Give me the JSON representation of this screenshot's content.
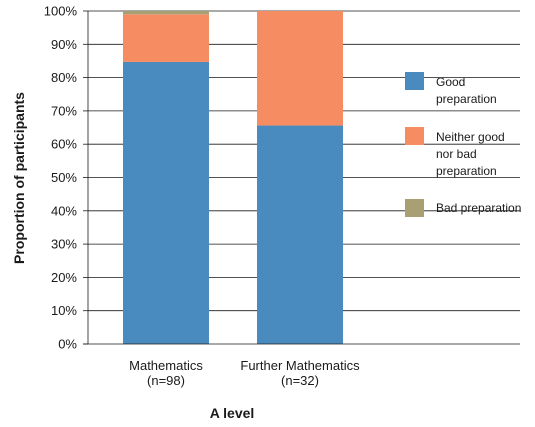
{
  "chart_data": {
    "type": "bar",
    "stacked": true,
    "categories": [
      [
        "Mathematics",
        "(n=98)"
      ],
      [
        "Further Mathematics",
        "(n=32)"
      ]
    ],
    "series": [
      {
        "name": "Good preparation",
        "legend_lines": [
          "Good",
          "preparation"
        ],
        "color": "#4a8bbf",
        "values": [
          84.7,
          65.6
        ]
      },
      {
        "name": "Neither good nor bad preparation",
        "legend_lines": [
          "Neither good",
          "nor bad",
          "preparation"
        ],
        "color": "#f68d62",
        "values": [
          14.3,
          34.4
        ]
      },
      {
        "name": "Bad preparation",
        "legend_lines": [
          "Bad preparation"
        ],
        "color": "#a89f73",
        "values": [
          1.0,
          0.0
        ]
      }
    ],
    "xlabel": "A level",
    "ylabel": "Proportion of participants",
    "ylim": [
      0,
      100
    ],
    "yticks": [
      "0%",
      "10%",
      "20%",
      "30%",
      "40%",
      "50%",
      "60%",
      "70%",
      "80%",
      "90%",
      "100%"
    ],
    "grid": true,
    "legend_position": "right"
  }
}
